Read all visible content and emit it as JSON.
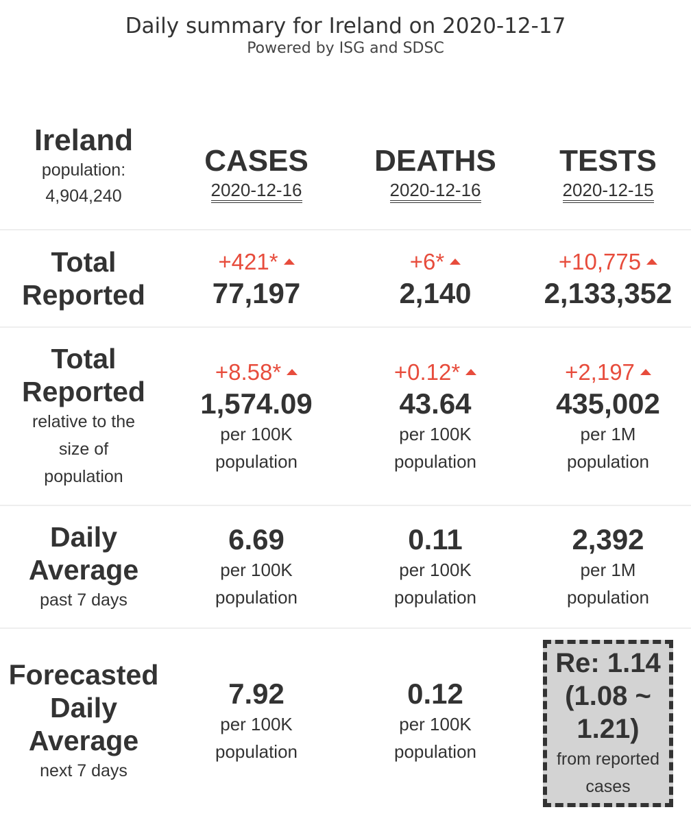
{
  "header": {
    "title": "Daily summary for Ireland on 2020-12-17",
    "subtitle": "Powered by ISG and SDSC"
  },
  "country": {
    "name": "Ireland",
    "population_label": "population:",
    "population_value": "4,904,240"
  },
  "columns": [
    {
      "title": "CASES",
      "date": "2020-12-16"
    },
    {
      "title": "DEATHS",
      "date": "2020-12-16"
    },
    {
      "title": "TESTS",
      "date": "2020-12-15"
    }
  ],
  "total_reported": {
    "label_line1": "Total",
    "label_line2": "Reported",
    "cells": [
      {
        "delta": "+421*",
        "value": "77,197"
      },
      {
        "delta": "+6*",
        "value": "2,140"
      },
      {
        "delta": "+10,775",
        "value": "2,133,352"
      }
    ]
  },
  "relative": {
    "label_line1": "Total",
    "label_line2": "Reported",
    "sub_line1": "relative to the",
    "sub_line2": "size of",
    "sub_line3": "population",
    "cells": [
      {
        "delta": "+8.58*",
        "value": "1,574.09",
        "unit_line1": "per 100K",
        "unit_line2": "population"
      },
      {
        "delta": "+0.12*",
        "value": "43.64",
        "unit_line1": "per 100K",
        "unit_line2": "population"
      },
      {
        "delta": "+2,197",
        "value": "435,002",
        "unit_line1": "per 1M",
        "unit_line2": "population"
      }
    ]
  },
  "daily_average": {
    "label_line1": "Daily",
    "label_line2": "Average",
    "sub": "past 7 days",
    "cells": [
      {
        "value": "6.69",
        "unit_line1": "per 100K",
        "unit_line2": "population"
      },
      {
        "value": "0.11",
        "unit_line1": "per 100K",
        "unit_line2": "population"
      },
      {
        "value": "2,392",
        "unit_line1": "per 1M",
        "unit_line2": "population"
      }
    ]
  },
  "forecast": {
    "label_line1": "Forecasted",
    "label_line2": "Daily",
    "label_line3": "Average",
    "sub": "next 7 days",
    "cells": [
      {
        "value": "7.92",
        "unit_line1": "per 100K",
        "unit_line2": "population"
      },
      {
        "value": "0.12",
        "unit_line1": "per 100K",
        "unit_line2": "population"
      }
    ],
    "re": {
      "line1": "Re: 1.14",
      "line2": "(1.08 ~",
      "line3": "1.21)",
      "sub_line1": "from reported",
      "sub_line2": "cases"
    }
  },
  "colors": {
    "text": "#333333",
    "increase": "#e74c3c",
    "re_box_bg": "#d3d3d3",
    "separator": "#eeeeee"
  },
  "icons": {
    "increase": "triangle-up-icon"
  }
}
